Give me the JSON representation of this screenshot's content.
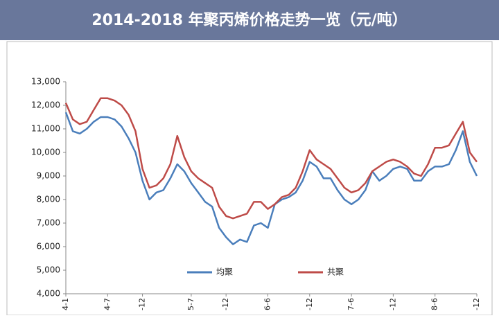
{
  "chart_data": {
    "type": "line",
    "title": "2014-2018 年聚丙烯价格走势一览（元/吨）",
    "categories": [
      "4-1",
      null,
      null,
      null,
      null,
      null,
      "4-7",
      null,
      null,
      null,
      null,
      "-12",
      null,
      null,
      null,
      null,
      null,
      null,
      "5-7",
      null,
      null,
      null,
      null,
      "-12",
      null,
      null,
      null,
      null,
      null,
      "6-6",
      null,
      null,
      null,
      null,
      null,
      "-12",
      null,
      null,
      null,
      null,
      null,
      "7-6",
      null,
      null,
      null,
      null,
      null,
      "-12",
      null,
      null,
      null,
      null,
      null,
      "8-6",
      null,
      null,
      null,
      null,
      null,
      "-12"
    ],
    "series": [
      {
        "name": "均聚",
        "color": "#4a7ebb",
        "values": [
          11700,
          10900,
          10800,
          11000,
          11300,
          11500,
          11500,
          11400,
          11100,
          10600,
          10000,
          8800,
          8000,
          8300,
          8400,
          8900,
          9500,
          9200,
          8700,
          8300,
          7900,
          7700,
          6800,
          6400,
          6100,
          6300,
          6200,
          6900,
          7000,
          6800,
          7800,
          8000,
          8100,
          8300,
          8800,
          9600,
          9400,
          8900,
          8900,
          8400,
          8000,
          7800,
          8000,
          8400,
          9200,
          8800,
          9000,
          9300,
          9400,
          9300,
          8800,
          8800,
          9200,
          9400,
          9400,
          9500,
          10100,
          10900,
          9600,
          9000
        ]
      },
      {
        "name": "共聚",
        "color": "#be4b48",
        "values": [
          12100,
          11400,
          11200,
          11300,
          11800,
          12300,
          12300,
          12200,
          12000,
          11600,
          10900,
          9300,
          8500,
          8600,
          8900,
          9500,
          10700,
          9800,
          9200,
          8900,
          8700,
          8500,
          7700,
          7300,
          7200,
          7300,
          7400,
          7900,
          7900,
          7600,
          7800,
          8100,
          8200,
          8500,
          9200,
          10100,
          9700,
          9500,
          9300,
          8900,
          8500,
          8300,
          8400,
          8700,
          9200,
          9400,
          9600,
          9700,
          9600,
          9400,
          9100,
          9000,
          9500,
          10200,
          10200,
          10300,
          10800,
          11300,
          10000,
          9600
        ]
      }
    ],
    "ylim": [
      4000,
      13000
    ],
    "yticks": [
      {
        "value": 4000,
        "label": "4,000"
      },
      {
        "value": 5000,
        "label": "5,000"
      },
      {
        "value": 6000,
        "label": "6,000"
      },
      {
        "value": 7000,
        "label": "7,000"
      },
      {
        "value": 8000,
        "label": "8,000"
      },
      {
        "value": 9000,
        "label": "9,000"
      },
      {
        "value": 10000,
        "label": "10,000"
      },
      {
        "value": 11000,
        "label": "11,000"
      },
      {
        "value": 12000,
        "label": "12,000"
      },
      {
        "value": 13000,
        "label": "13,000"
      }
    ],
    "grid": false
  }
}
